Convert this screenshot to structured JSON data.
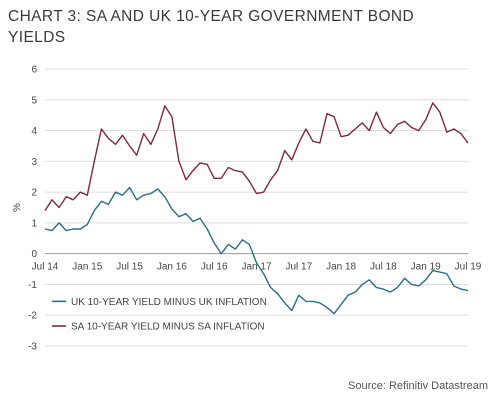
{
  "title_line1": "CHART 3: SA AND UK 10-YEAR GOVERNMENT BOND",
  "title_line2": "YIELDS",
  "source": "Source: Refinitiv Datastream",
  "chart_data": {
    "type": "line",
    "title": "CHART 3: SA AND UK 10-YEAR GOVERNMENT BOND YIELDS",
    "ylabel": "%",
    "xlabel": "",
    "ylim": [
      -3,
      6
    ],
    "yticks": [
      6,
      5,
      4,
      3,
      2,
      1,
      0,
      -1,
      -2,
      -3
    ],
    "xlim": [
      "2014-07",
      "2019-07"
    ],
    "xticks": [
      "Jul 14",
      "Jan 15",
      "Jul 15",
      "Jan 16",
      "Jul 16",
      "Jan 17",
      "Jul 17",
      "Jan 18",
      "Jul 18",
      "Jan 19",
      "Jul 19"
    ],
    "grid": "horizontal",
    "legend_position": "bottom-left",
    "series": [
      {
        "name": "UK 10-YEAR YIELD MINUS UK INFLATION",
        "color": "#2e6e7e",
        "x": [
          "2014-07",
          "2014-08",
          "2014-09",
          "2014-10",
          "2014-11",
          "2014-12",
          "2015-01",
          "2015-02",
          "2015-03",
          "2015-04",
          "2015-05",
          "2015-06",
          "2015-07",
          "2015-08",
          "2015-09",
          "2015-10",
          "2015-11",
          "2015-12",
          "2016-01",
          "2016-02",
          "2016-03",
          "2016-04",
          "2016-05",
          "2016-06",
          "2016-07",
          "2016-08",
          "2016-09",
          "2016-10",
          "2016-11",
          "2016-12",
          "2017-01",
          "2017-02",
          "2017-03",
          "2017-04",
          "2017-05",
          "2017-06",
          "2017-07",
          "2017-08",
          "2017-09",
          "2017-10",
          "2017-11",
          "2017-12",
          "2018-01",
          "2018-02",
          "2018-03",
          "2018-04",
          "2018-05",
          "2018-06",
          "2018-07",
          "2018-08",
          "2018-09",
          "2018-10",
          "2018-11",
          "2018-12",
          "2019-01",
          "2019-02",
          "2019-03",
          "2019-04",
          "2019-05",
          "2019-06",
          "2019-07"
        ],
        "values": [
          0.8,
          0.75,
          1.0,
          0.75,
          0.8,
          0.8,
          0.95,
          1.4,
          1.7,
          1.6,
          2.0,
          1.9,
          2.15,
          1.75,
          1.9,
          1.95,
          2.1,
          1.85,
          1.45,
          1.2,
          1.3,
          1.05,
          1.15,
          0.8,
          0.35,
          0.0,
          0.3,
          0.15,
          0.45,
          0.3,
          -0.3,
          -0.65,
          -1.1,
          -1.3,
          -1.6,
          -1.85,
          -1.35,
          -1.55,
          -1.55,
          -1.6,
          -1.75,
          -1.95,
          -1.65,
          -1.35,
          -1.25,
          -1.0,
          -0.85,
          -1.1,
          -1.15,
          -1.25,
          -1.1,
          -0.8,
          -1.0,
          -1.05,
          -0.85,
          -0.55,
          -0.6,
          -0.65,
          -1.05,
          -1.15,
          -1.2
        ]
      },
      {
        "name": "SA 10-YEAR YIELD MINUS SA INFLATION",
        "color": "#7a2b42",
        "x": [
          "2014-07",
          "2014-08",
          "2014-09",
          "2014-10",
          "2014-11",
          "2014-12",
          "2015-01",
          "2015-02",
          "2015-03",
          "2015-04",
          "2015-05",
          "2015-06",
          "2015-07",
          "2015-08",
          "2015-09",
          "2015-10",
          "2015-11",
          "2015-12",
          "2016-01",
          "2016-02",
          "2016-03",
          "2016-04",
          "2016-05",
          "2016-06",
          "2016-07",
          "2016-08",
          "2016-09",
          "2016-10",
          "2016-11",
          "2016-12",
          "2017-01",
          "2017-02",
          "2017-03",
          "2017-04",
          "2017-05",
          "2017-06",
          "2017-07",
          "2017-08",
          "2017-09",
          "2017-10",
          "2017-11",
          "2017-12",
          "2018-01",
          "2018-02",
          "2018-03",
          "2018-04",
          "2018-05",
          "2018-06",
          "2018-07",
          "2018-08",
          "2018-09",
          "2018-10",
          "2018-11",
          "2018-12",
          "2019-01",
          "2019-02",
          "2019-03",
          "2019-04",
          "2019-05",
          "2019-06",
          "2019-07"
        ],
        "values": [
          1.4,
          1.75,
          1.5,
          1.85,
          1.75,
          2.0,
          1.9,
          3.0,
          4.05,
          3.75,
          3.55,
          3.85,
          3.5,
          3.2,
          3.9,
          3.55,
          4.05,
          4.8,
          4.45,
          3.0,
          2.4,
          2.7,
          2.95,
          2.9,
          2.45,
          2.45,
          2.8,
          2.7,
          2.65,
          2.35,
          1.95,
          2.0,
          2.4,
          2.7,
          3.35,
          3.05,
          3.6,
          4.05,
          3.65,
          3.6,
          4.55,
          4.45,
          3.8,
          3.85,
          4.05,
          4.25,
          4.0,
          4.6,
          4.1,
          3.9,
          4.2,
          4.3,
          4.1,
          4.0,
          4.35,
          4.9,
          4.6,
          3.95,
          4.05,
          3.9,
          3.6
        ]
      }
    ]
  }
}
